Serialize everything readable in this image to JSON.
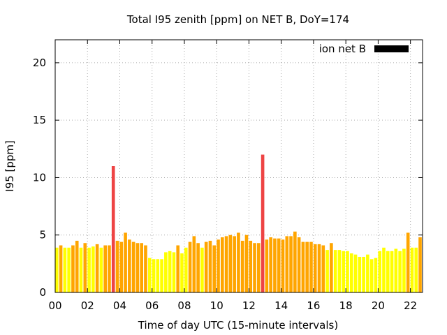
{
  "chart_data": {
    "type": "bar",
    "title": "Total I95 zenith [ppm] on NET B, DoY=174",
    "xlabel": "Time of day UTC (15-minute intervals)",
    "ylabel": "I95 [ppm]",
    "xlim": [
      0,
      22.75
    ],
    "ylim": [
      0,
      22
    ],
    "x_ticks": [
      "00",
      "02",
      "04",
      "06",
      "08",
      "10",
      "12",
      "14",
      "16",
      "18",
      "20",
      "22"
    ],
    "y_ticks": [
      "0",
      "5",
      "10",
      "15",
      "20"
    ],
    "grid": true,
    "legend_position": "top-right",
    "series": [
      {
        "name": "ion net B",
        "color": "#000000",
        "interval_hours": 0.25,
        "values": [
          3.9,
          4.1,
          3.9,
          3.9,
          4.1,
          4.5,
          3.9,
          4.3,
          3.9,
          4.0,
          4.2,
          3.9,
          4.1,
          4.1,
          11.0,
          4.5,
          4.4,
          5.2,
          4.6,
          4.4,
          4.3,
          4.3,
          4.1,
          3.0,
          2.9,
          2.9,
          2.9,
          3.5,
          3.6,
          3.5,
          4.1,
          3.4,
          3.9,
          4.4,
          4.9,
          4.3,
          3.9,
          4.4,
          4.5,
          4.1,
          4.6,
          4.8,
          4.9,
          5.0,
          4.9,
          5.2,
          4.5,
          5.0,
          4.5,
          4.3,
          4.3,
          12.0,
          4.6,
          4.8,
          4.7,
          4.7,
          4.6,
          4.9,
          4.9,
          5.3,
          4.8,
          4.4,
          4.4,
          4.4,
          4.2,
          4.2,
          4.1,
          3.7,
          4.3,
          3.7,
          3.7,
          3.6,
          3.6,
          3.4,
          3.3,
          3.1,
          3.1,
          3.3,
          2.9,
          3.0,
          3.6,
          3.9,
          3.6,
          3.6,
          3.8,
          3.6,
          3.8,
          5.2,
          3.9,
          3.9,
          4.8
        ]
      }
    ],
    "color_scale": {
      "low": "#ffff00",
      "mid": "#ffa500",
      "high": "#ee4444",
      "low_max": 4.0,
      "mid_max": 10.0
    }
  }
}
